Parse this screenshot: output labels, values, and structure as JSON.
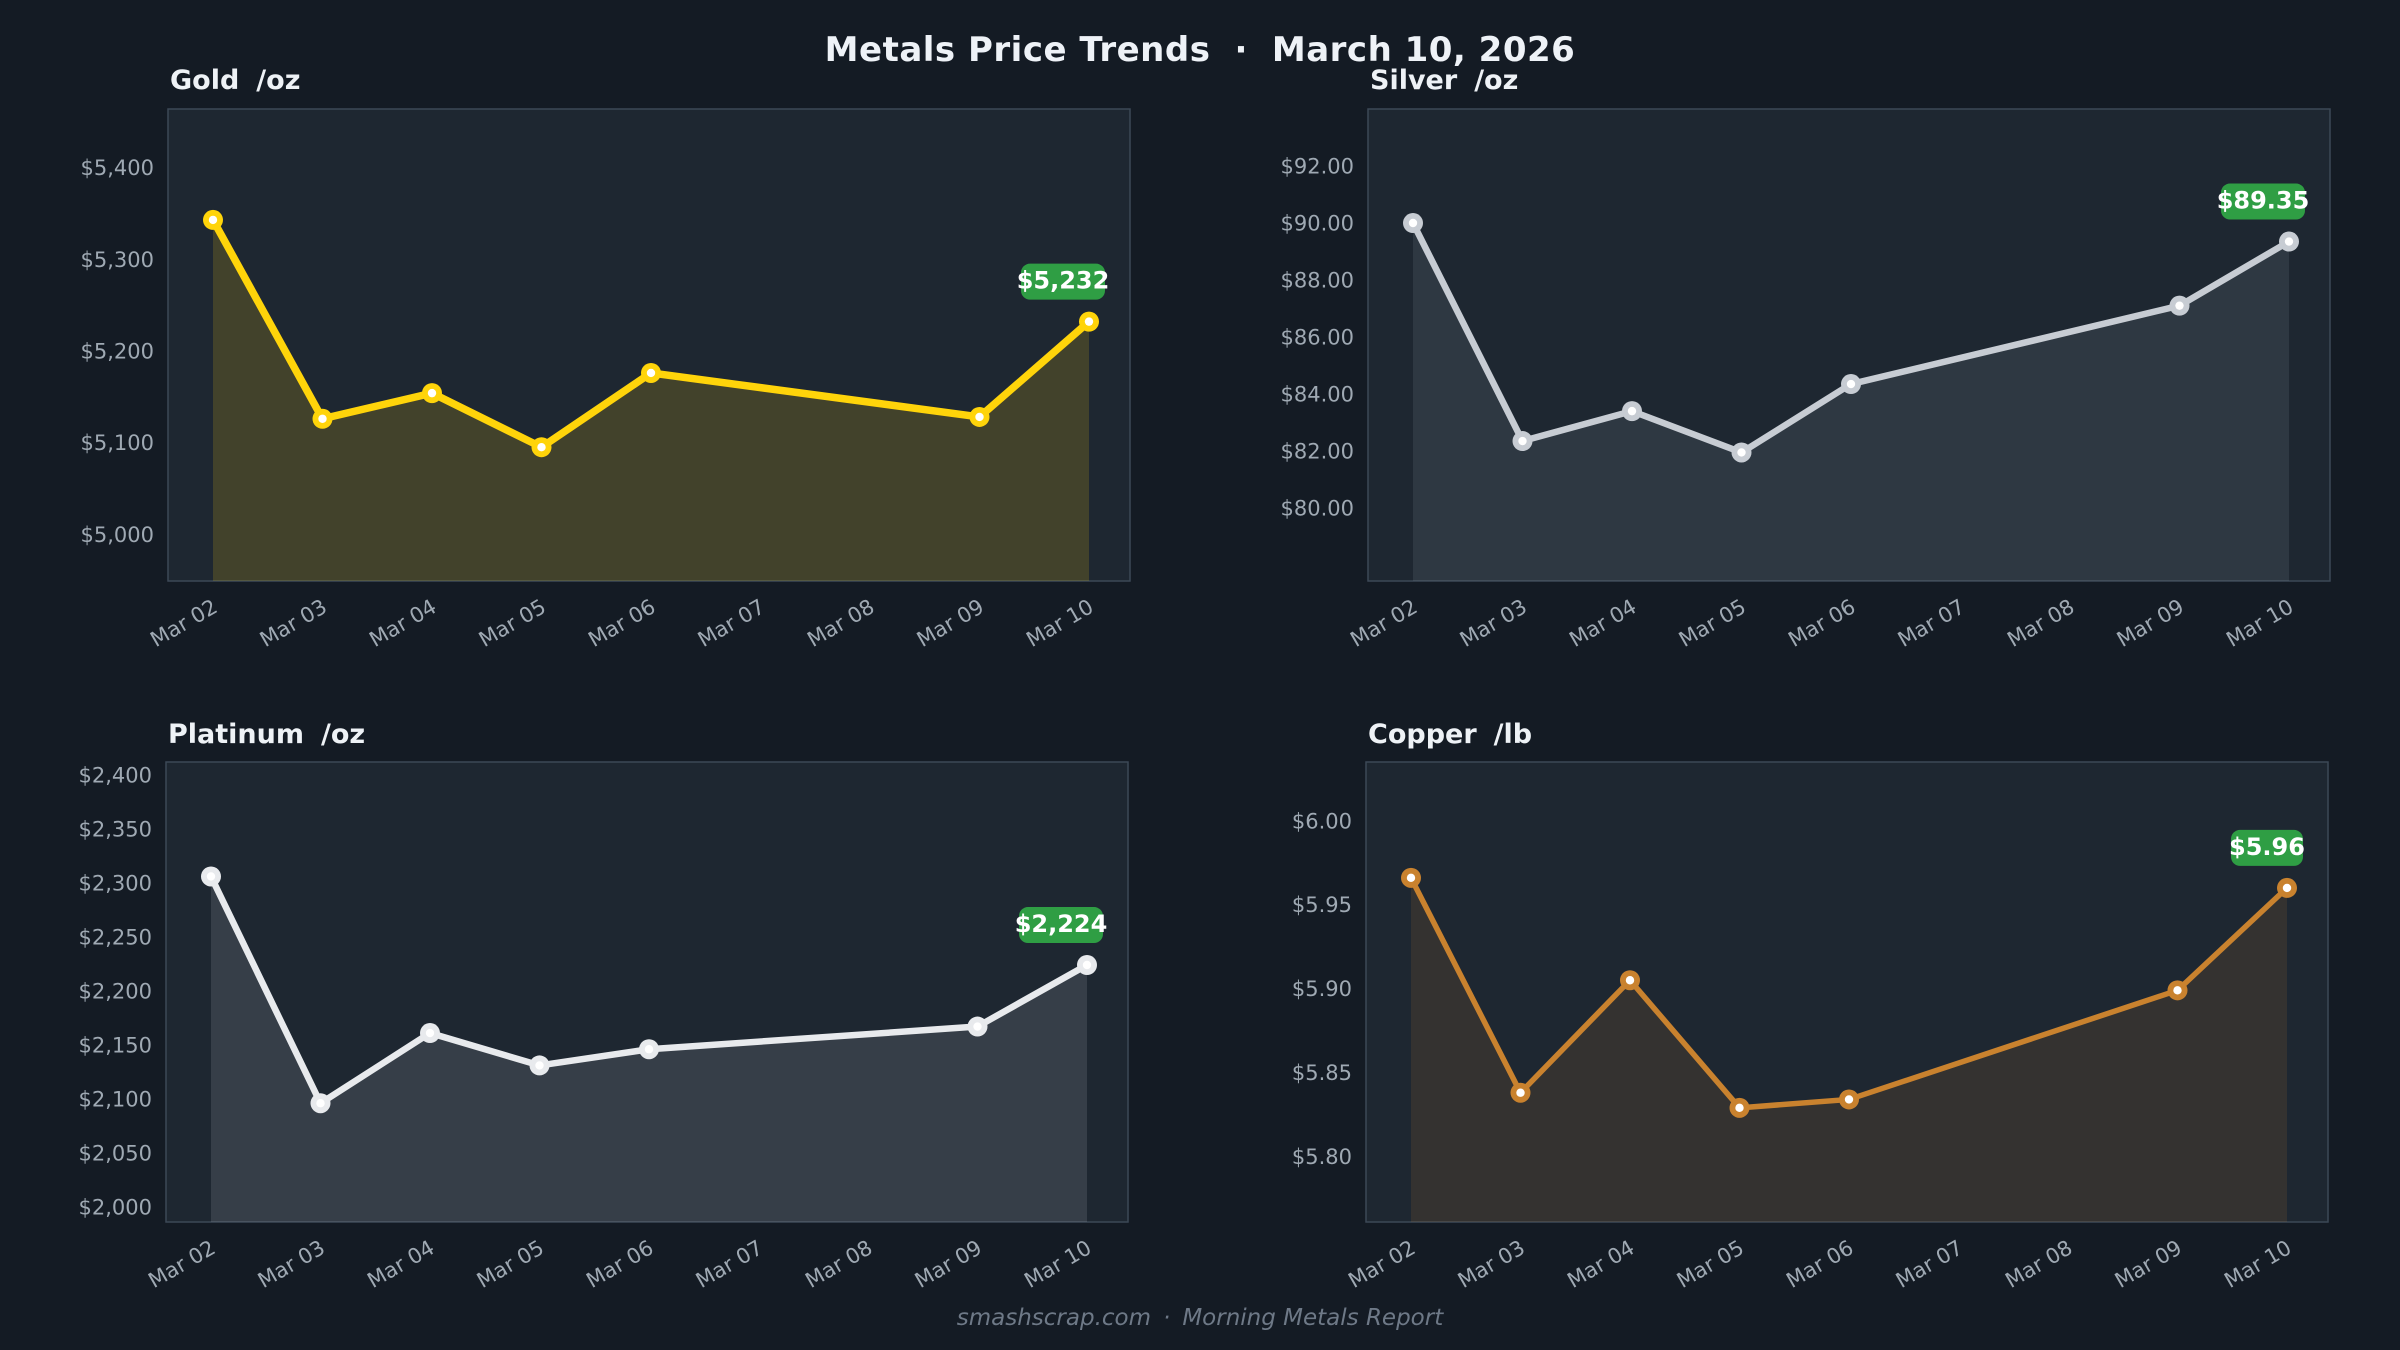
{
  "header": {
    "title": "Metals Price Trends",
    "separator": "·",
    "date": "March 10, 2026"
  },
  "footer": {
    "site": "smashscrap.com",
    "separator": "·",
    "label": "Morning Metals Report"
  },
  "x_axis_ticks": [
    "Mar 02",
    "Mar 03",
    "Mar 04",
    "Mar 05",
    "Mar 06",
    "Mar 07",
    "Mar 08",
    "Mar 09",
    "Mar 10"
  ],
  "colors": {
    "page_bg": "#141b24",
    "plot_bg": "#1e2731",
    "plot_border": "#3c4956",
    "tick_text": "#9fa9b3",
    "badge_bg": "#2f9e44",
    "badge_text": "#ffffff"
  },
  "chart_data": [
    {
      "type": "line",
      "title": "Gold",
      "unit": "/oz",
      "categories": [
        "Mar 02",
        "Mar 03",
        "Mar 04",
        "Mar 05",
        "Mar 06",
        "Mar 09",
        "Mar 10"
      ],
      "values": [
        5343,
        5126,
        5154,
        5095,
        5176,
        5128,
        5232
      ],
      "badge": {
        "label": "$5,232",
        "bg": "#2f9e44"
      },
      "line_color": "#ffd40a",
      "fill_color": "rgba(255,212,10,0.16)",
      "line_width": 7.5,
      "y_ticks": [
        {
          "label": "$5,400",
          "value": 5400
        },
        {
          "label": "$5,300",
          "value": 5300
        },
        {
          "label": "$5,200",
          "value": 5200
        },
        {
          "label": "$5,100",
          "value": 5100
        },
        {
          "label": "$5,000",
          "value": 5000
        }
      ],
      "axis": {
        "top_value": 5464,
        "bottom_value": 4949
      },
      "xlabel": "",
      "ylabel": "",
      "legend": "none",
      "grid": false
    },
    {
      "type": "line",
      "title": "Silver",
      "unit": "/oz",
      "categories": [
        "Mar 02",
        "Mar 03",
        "Mar 04",
        "Mar 05",
        "Mar 06",
        "Mar 09",
        "Mar 10"
      ],
      "values": [
        90.0,
        82.35,
        83.4,
        81.95,
        84.35,
        87.1,
        89.35
      ],
      "badge": {
        "label": "$89.35",
        "bg": "#2f9e44"
      },
      "line_color": "#c7ccd3",
      "fill_color": "rgba(199,204,211,0.10)",
      "line_width": 6.5,
      "y_ticks": [
        {
          "label": "$92.00",
          "value": 92
        },
        {
          "label": "$90.00",
          "value": 90
        },
        {
          "label": "$88.00",
          "value": 88
        },
        {
          "label": "$86.00",
          "value": 86
        },
        {
          "label": "$84.00",
          "value": 84
        },
        {
          "label": "$82.00",
          "value": 82
        },
        {
          "label": "$80.00",
          "value": 80
        }
      ],
      "axis": {
        "top_value": 94.0,
        "bottom_value": 77.44
      },
      "xlabel": "",
      "ylabel": "",
      "legend": "none",
      "grid": false
    },
    {
      "type": "line",
      "title": "Platinum",
      "unit": "/oz",
      "categories": [
        "Mar 02",
        "Mar 03",
        "Mar 04",
        "Mar 05",
        "Mar 06",
        "Mar 09",
        "Mar 10"
      ],
      "values": [
        2306,
        2096,
        2161,
        2131,
        2146,
        2167,
        2224
      ],
      "badge": {
        "label": "$2,224",
        "bg": "#2f9e44"
      },
      "line_color": "#e8eaed",
      "fill_color": "rgba(232,234,237,0.12)",
      "line_width": 6.5,
      "y_ticks": [
        {
          "label": "$2,400",
          "value": 2400
        },
        {
          "label": "$2,350",
          "value": 2350
        },
        {
          "label": "$2,300",
          "value": 2300
        },
        {
          "label": "$2,250",
          "value": 2250
        },
        {
          "label": "$2,200",
          "value": 2200
        },
        {
          "label": "$2,150",
          "value": 2150
        },
        {
          "label": "$2,100",
          "value": 2100
        },
        {
          "label": "$2,050",
          "value": 2050
        },
        {
          "label": "$2,000",
          "value": 2000
        }
      ],
      "axis": {
        "top_value": 2412,
        "bottom_value": 1986
      },
      "xlabel": "",
      "ylabel": "",
      "legend": "none",
      "grid": false
    },
    {
      "type": "line",
      "title": "Copper",
      "unit": "/lb",
      "categories": [
        "Mar 02",
        "Mar 03",
        "Mar 04",
        "Mar 05",
        "Mar 06",
        "Mar 09",
        "Mar 10"
      ],
      "values": [
        5.966,
        5.838,
        5.905,
        5.829,
        5.834,
        5.899,
        5.96
      ],
      "badge": {
        "label": "$5.96",
        "bg": "#2f9e44"
      },
      "line_color": "#c9822e",
      "fill_color": "rgba(201,130,46,0.13)",
      "line_width": 5.5,
      "y_ticks": [
        {
          "label": "$6.00",
          "value": 6.0
        },
        {
          "label": "$5.95",
          "value": 5.95
        },
        {
          "label": "$5.90",
          "value": 5.9
        },
        {
          "label": "$5.85",
          "value": 5.85
        },
        {
          "label": "$5.80",
          "value": 5.8
        }
      ],
      "axis": {
        "top_value": 6.035,
        "bottom_value": 5.761
      },
      "xlabel": "",
      "ylabel": "",
      "legend": "none",
      "grid": false
    }
  ]
}
